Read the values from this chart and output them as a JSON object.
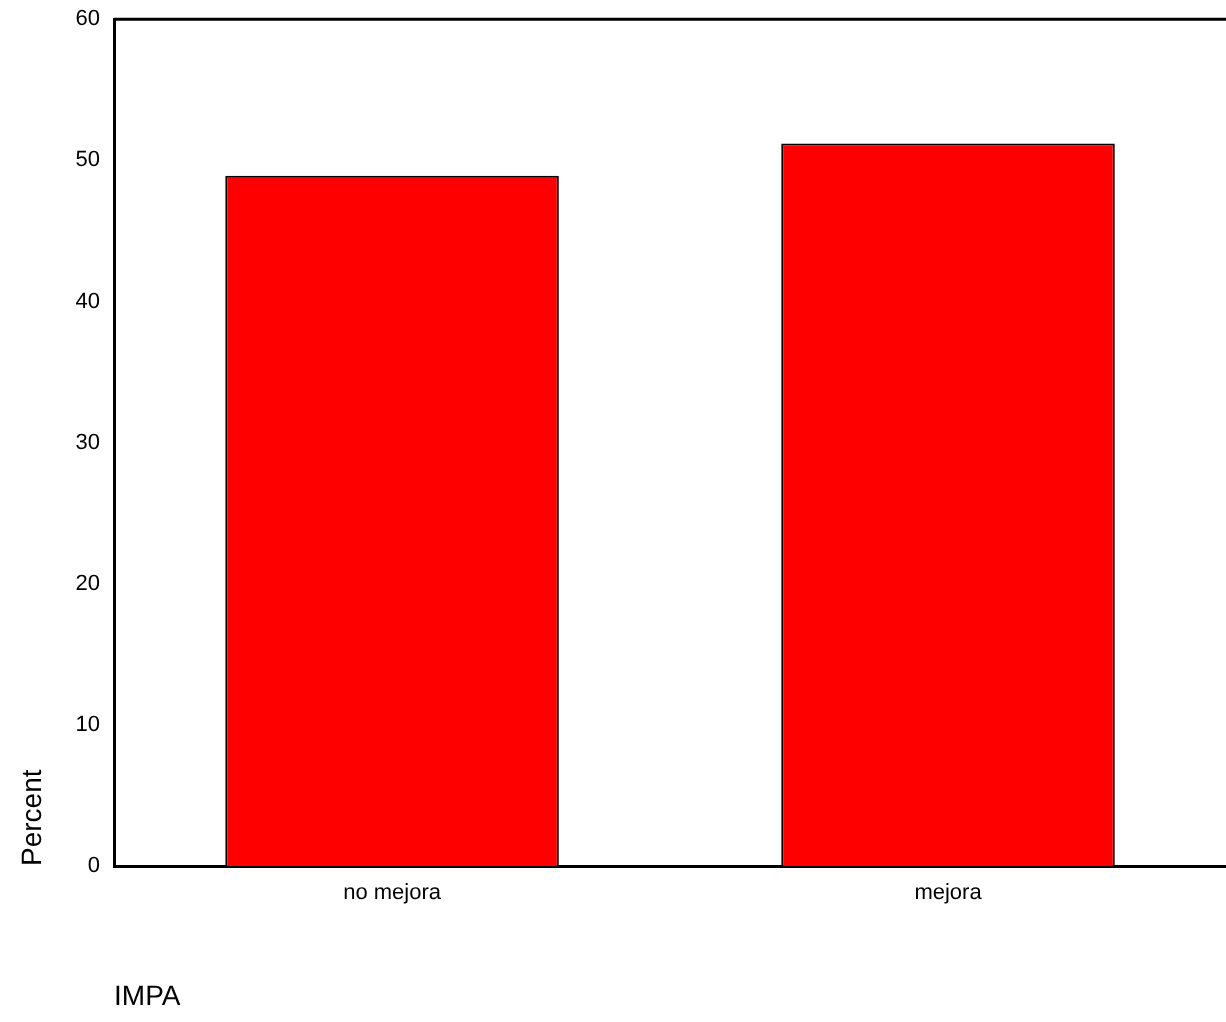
{
  "chart_data": {
    "type": "bar",
    "xlabel": "IMPA",
    "ylabel": "Percent",
    "categories": [
      "no mejora",
      "mejora"
    ],
    "values": [
      48.9,
      51.2
    ],
    "color": "#ff0000",
    "ylim": [
      0,
      60
    ],
    "yticks": [
      0,
      10,
      20,
      30,
      40,
      50,
      60
    ],
    "grid": false,
    "legend": false
  }
}
